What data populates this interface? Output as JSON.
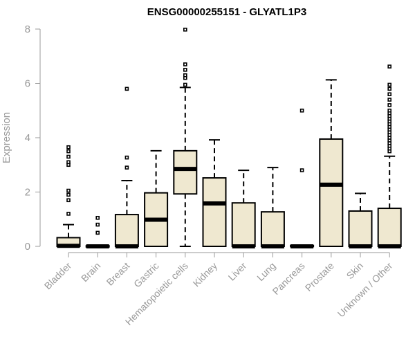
{
  "chart_data": {
    "type": "box",
    "title": "ENSG00000255151 - GLYATL1P3",
    "xlabel": "",
    "ylabel": "Expression",
    "ylim": [
      0,
      8
    ],
    "yticks": [
      0,
      2,
      4,
      6,
      8
    ],
    "box_fill": "#efe8d0",
    "categories": [
      "Bladder",
      "Brain",
      "Breast",
      "Gastric",
      "Hematopoietic cells",
      "Kidney",
      "Liver",
      "Lung",
      "Pancreas",
      "Prostate",
      "Skin",
      "Unknown / Other"
    ],
    "boxes": [
      {
        "name": "Bladder",
        "q1": 0,
        "median": 0.02,
        "q3": 0.32,
        "lower": 0,
        "upper": 0.8,
        "outliers": [
          1.2,
          1.7,
          1.9,
          2.05,
          3.0,
          3.1,
          3.3,
          3.5,
          3.65
        ]
      },
      {
        "name": "Brain",
        "q1": 0,
        "median": 0,
        "q3": 0.02,
        "lower": 0,
        "upper": 0.02,
        "outliers": [
          0.5,
          0.8,
          1.05
        ]
      },
      {
        "name": "Breast",
        "q1": 0,
        "median": 0,
        "q3": 1.17,
        "lower": 0,
        "upper": 2.42,
        "outliers": [
          2.9,
          3.27,
          5.8
        ]
      },
      {
        "name": "Gastric",
        "q1": 0,
        "median": 0.98,
        "q3": 1.97,
        "lower": 0,
        "upper": 3.52,
        "outliers": []
      },
      {
        "name": "Hematopoietic cells",
        "q1": 1.93,
        "median": 2.85,
        "q3": 3.52,
        "lower": 0,
        "upper": 5.85,
        "outliers": [
          5.95,
          6.2,
          6.3,
          6.5,
          6.7,
          7.98
        ]
      },
      {
        "name": "Kidney",
        "q1": 0,
        "median": 1.58,
        "q3": 2.52,
        "lower": 0,
        "upper": 3.92,
        "outliers": []
      },
      {
        "name": "Liver",
        "q1": 0,
        "median": 0,
        "q3": 1.6,
        "lower": 0,
        "upper": 2.8,
        "outliers": []
      },
      {
        "name": "Lung",
        "q1": 0,
        "median": 0,
        "q3": 1.27,
        "lower": 0,
        "upper": 2.9,
        "outliers": []
      },
      {
        "name": "Pancreas",
        "q1": 0,
        "median": 0,
        "q3": 0.03,
        "lower": 0,
        "upper": 0.03,
        "outliers": [
          2.8,
          5.0
        ]
      },
      {
        "name": "Prostate",
        "q1": 0,
        "median": 2.27,
        "q3": 3.95,
        "lower": 0,
        "upper": 6.13,
        "outliers": []
      },
      {
        "name": "Skin",
        "q1": 0,
        "median": 0,
        "q3": 1.3,
        "lower": 0,
        "upper": 1.95,
        "outliers": []
      },
      {
        "name": "Unknown / Other",
        "q1": 0,
        "median": 0,
        "q3": 1.4,
        "lower": 0,
        "upper": 3.32,
        "outliers": [
          3.5,
          3.6,
          3.7,
          3.8,
          3.9,
          4.0,
          4.1,
          4.2,
          4.3,
          4.4,
          4.5,
          4.6,
          4.7,
          4.8,
          4.9,
          5.0,
          5.2,
          5.4,
          5.6,
          5.8,
          5.95,
          6.62
        ]
      }
    ]
  }
}
